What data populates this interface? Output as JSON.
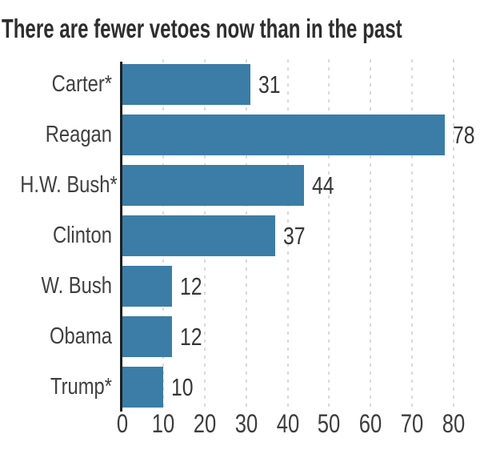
{
  "chart_data": {
    "type": "bar",
    "orientation": "horizontal",
    "title": "There are fewer vetoes now than in the past",
    "categories": [
      "Carter*",
      "Reagan",
      "H.W. Bush*",
      "Clinton",
      "W. Bush",
      "Obama",
      "Trump*"
    ],
    "values": [
      31,
      78,
      44,
      37,
      12,
      12,
      10
    ],
    "xlabel": "",
    "ylabel": "",
    "xlim": [
      0,
      80
    ],
    "xticks": [
      0,
      10,
      20,
      30,
      40,
      50,
      60,
      70,
      80
    ],
    "grid": true,
    "grid_style": "dashed-vertical",
    "legend": "none",
    "value_labels": true
  },
  "colors": {
    "bar": "#3b7da6",
    "title_text": "#2e2e2e",
    "category_text": "#404040",
    "value_text": "#363636",
    "tick_text": "#3d3d3d",
    "gridline": "#dadada",
    "axis_line": "#1f1f1f",
    "background": "#ffffff"
  }
}
